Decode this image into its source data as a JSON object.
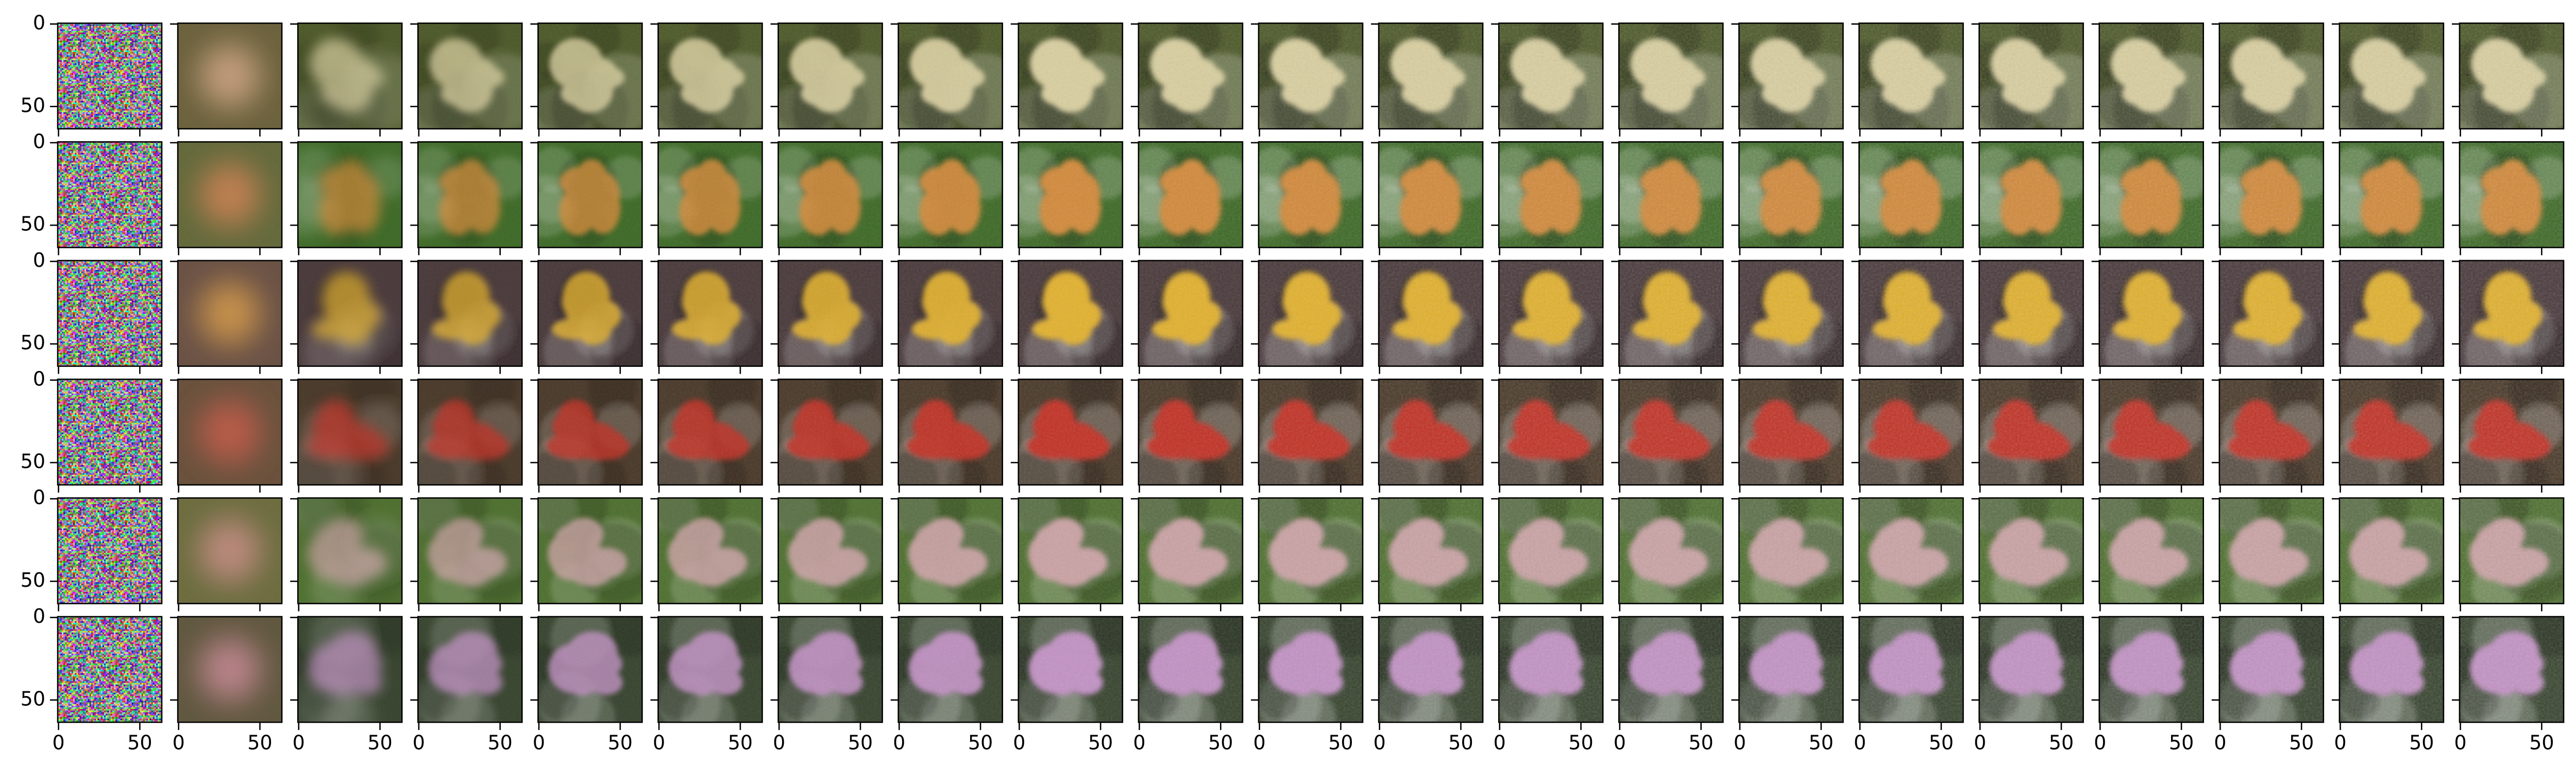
{
  "chart_data": {
    "type": "image_grid",
    "rows": 6,
    "columns": 21,
    "xlim": [
      -0.5,
      63.5
    ],
    "ylim": [
      63.5,
      -0.5
    ],
    "xticks": [
      0,
      50
    ],
    "yticks": [
      0,
      50
    ],
    "row_colors": [
      {
        "background": "#4e5a2a",
        "subject": "#d9cfa0"
      },
      {
        "background": "#3e6a27",
        "subject": "#d38a3a"
      },
      {
        "background": "#4a3a3c",
        "subject": "#e2b12e"
      },
      {
        "background": "#4a3a2a",
        "subject": "#c23028"
      },
      {
        "background": "#4f7030",
        "subject": "#caa2a4"
      },
      {
        "background": "#38452f",
        "subject": "#c292c4"
      }
    ]
  }
}
